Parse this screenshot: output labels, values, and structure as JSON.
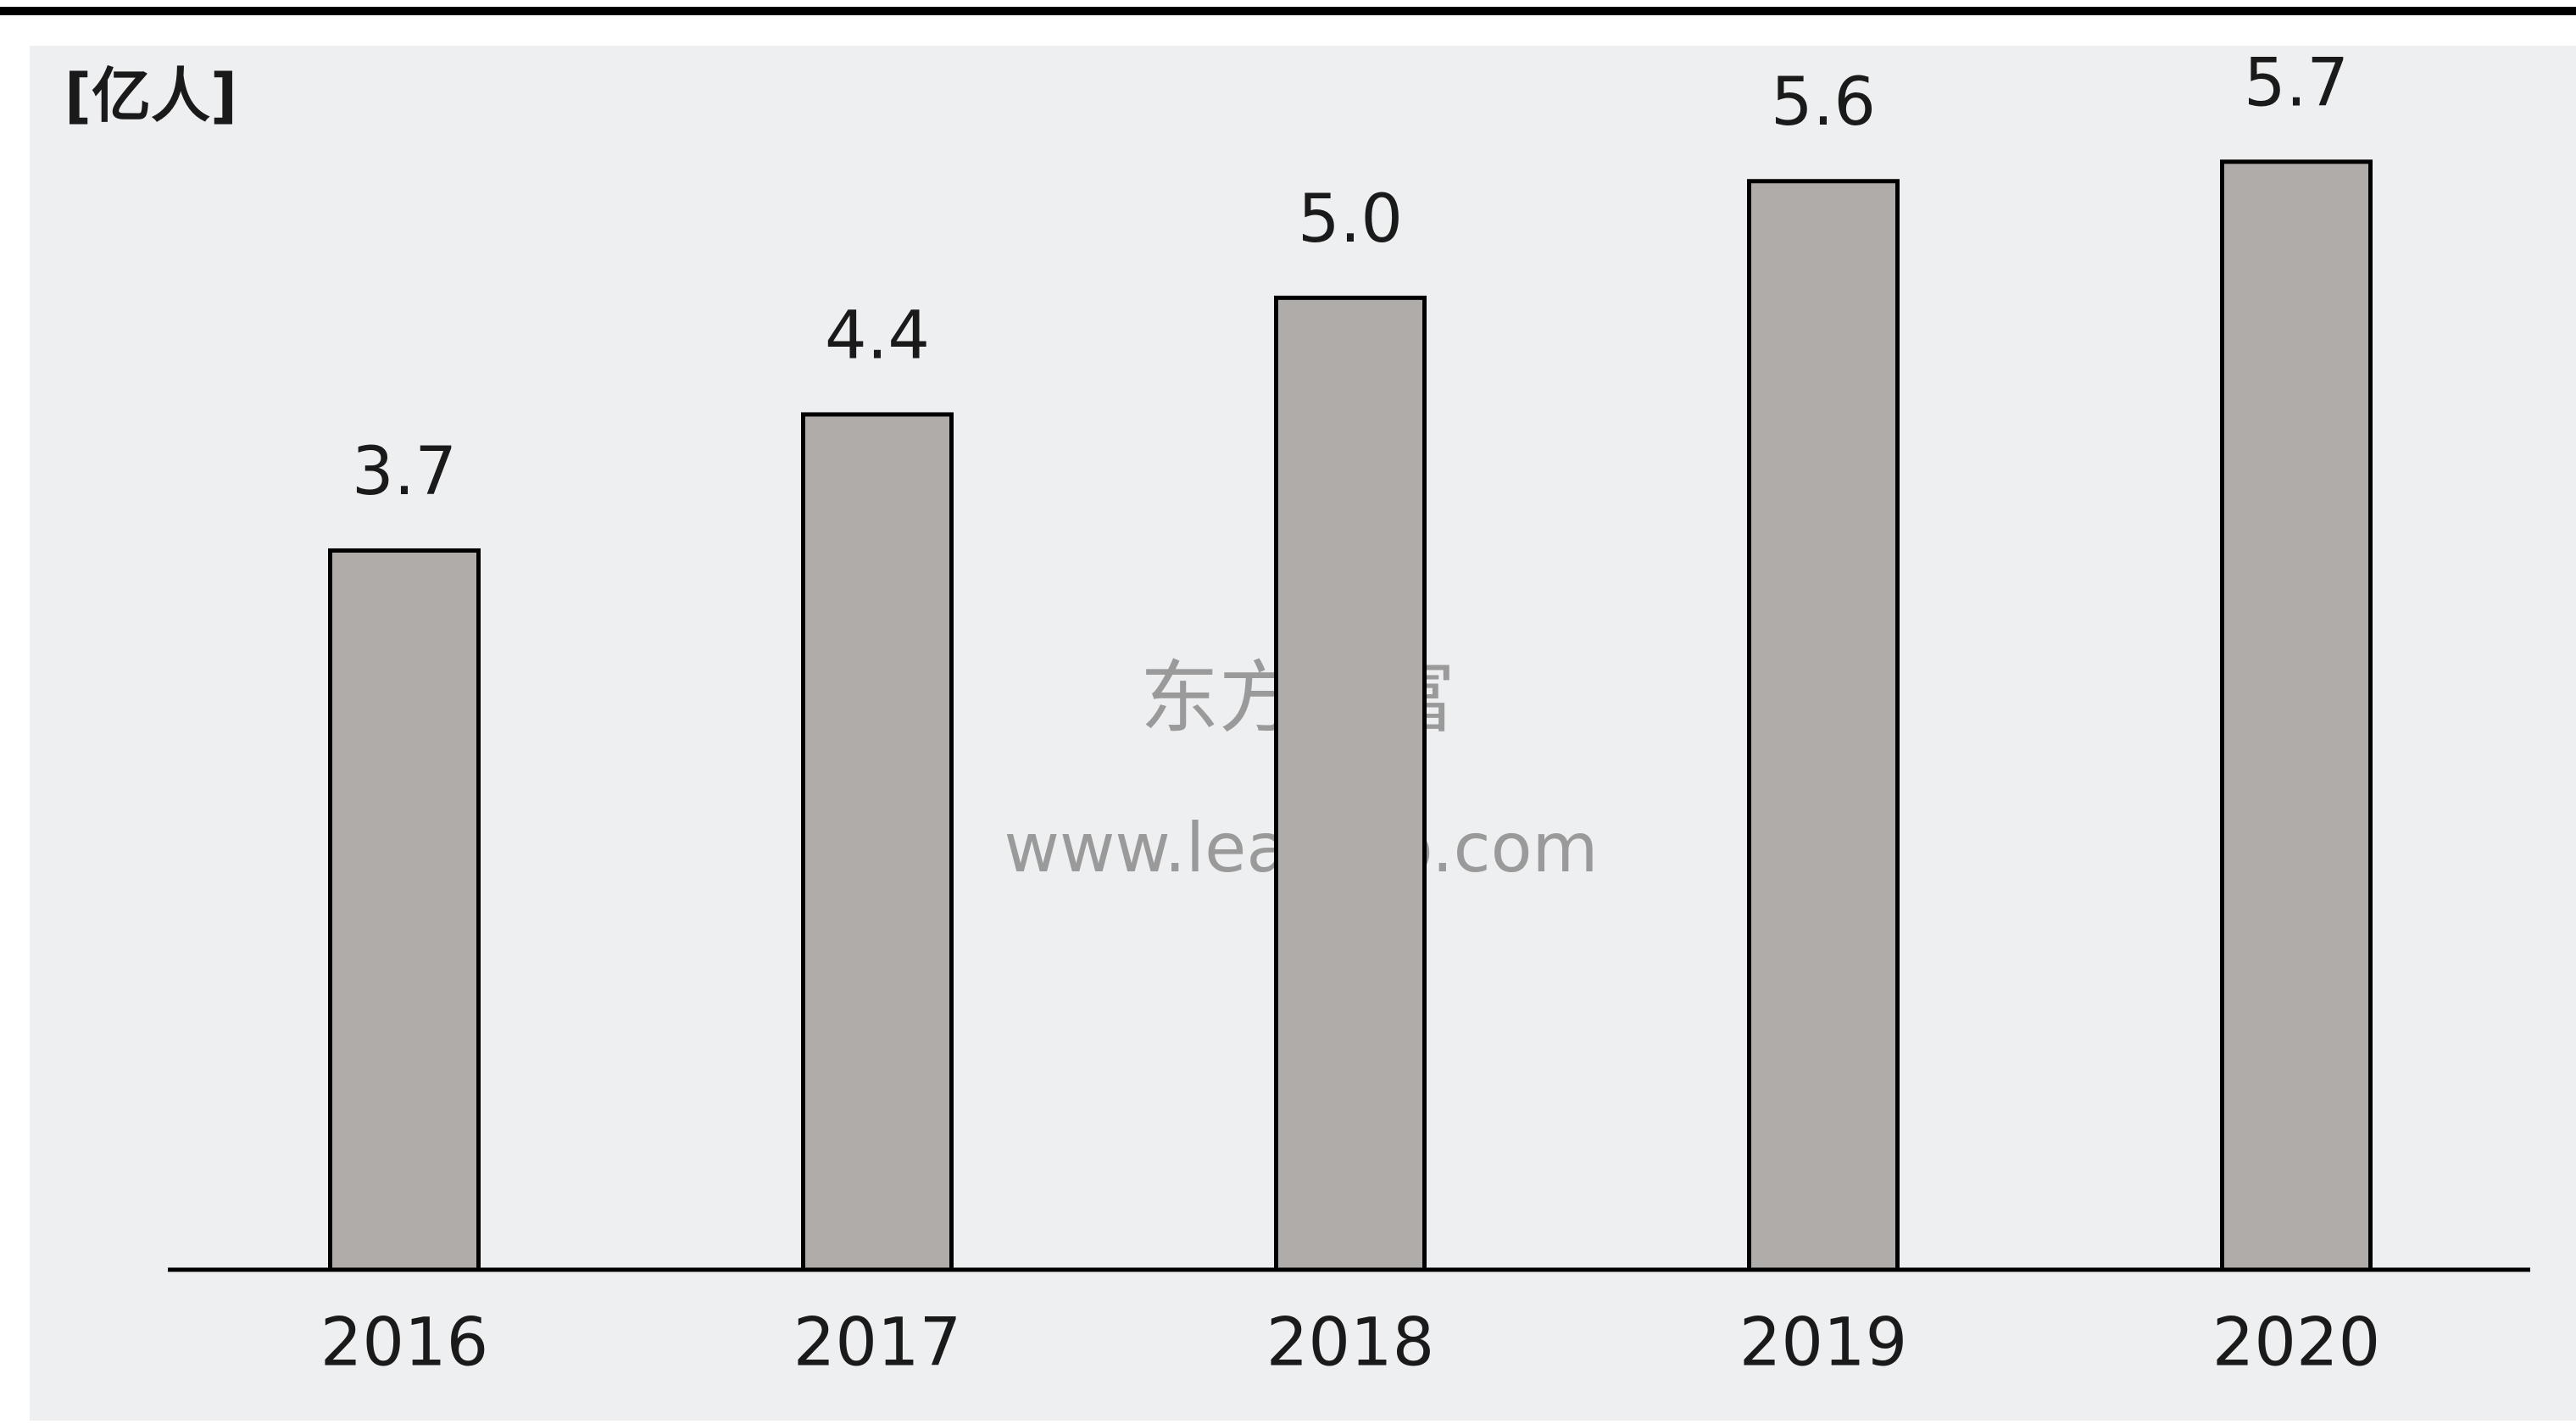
{
  "chart_data": {
    "type": "bar",
    "unit": "[亿人]",
    "categories": [
      "2016",
      "2017",
      "2018",
      "2019",
      "2020"
    ],
    "values": [
      3.7,
      4.4,
      5.0,
      5.6,
      5.7
    ],
    "value_labels": [
      "3.7",
      "4.4",
      "5.0",
      "5.6",
      "5.7"
    ],
    "color": "#b0acaa",
    "ylim": [
      0,
      6
    ],
    "watermark": [
      "东方财富",
      "www.leadleo.com"
    ]
  }
}
